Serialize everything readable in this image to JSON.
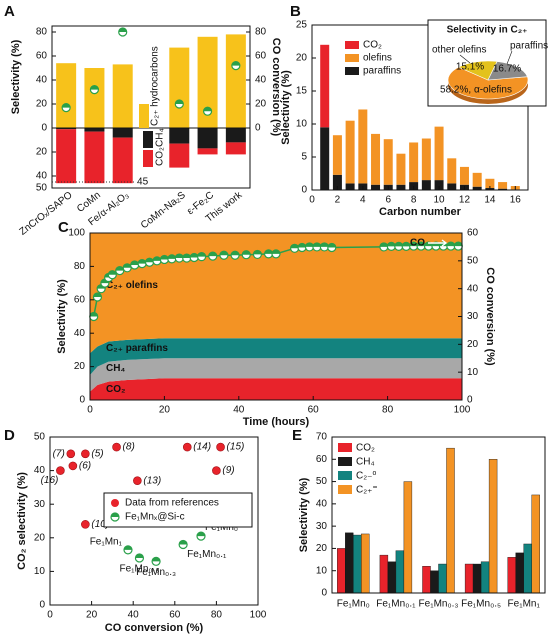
{
  "chart_data": [
    {
      "type": "bar",
      "panel_label": "A",
      "categories": [
        "ZnCrOₓ/SAPO",
        "CoMn",
        "Fe/α-Al₂O₃",
        "CoMn-Na₂S",
        "ε-Fe₂C",
        "This work"
      ],
      "series": [
        {
          "name": "C₂₊ hydrocarbons",
          "color": "#f7c21b",
          "values": [
            54,
            50,
            53,
            67,
            76,
            78
          ]
        },
        {
          "name": "CH₄",
          "color": "#1a1a1a",
          "axis": "lower",
          "values": [
            1,
            3,
            8,
            13,
            17,
            12
          ]
        },
        {
          "name": "CO₂",
          "color": "#e8232b",
          "axis": "lower",
          "values": [
            45,
            43,
            38,
            20,
            5,
            10
          ]
        },
        {
          "color": "#2aa04a",
          "axis": "y2",
          "values": [
            17,
            32,
            80,
            20,
            14,
            52
          ]
        }
      ],
      "ylim": [
        0,
        85
      ],
      "yticks": [
        0,
        20,
        40,
        60,
        80
      ],
      "ylim_lower": [
        0,
        50
      ],
      "yticks_lower": [
        20,
        40,
        50
      ],
      "y2lim": [
        0,
        85
      ],
      "y2ticks": [
        0,
        20,
        40,
        60,
        80
      ],
      "ylabel": "Selectivity (%)",
      "y2label": "CO conversion (%)",
      "annotation": "45"
    },
    {
      "type": "stacked_bar",
      "panel_label": "B",
      "x": [
        1,
        2,
        3,
        4,
        5,
        6,
        7,
        8,
        9,
        10,
        11,
        12,
        13,
        14,
        15,
        16
      ],
      "series": [
        {
          "name": "CO₂",
          "color": "#e8232b",
          "values": [
            12.5,
            null,
            null,
            null,
            null,
            null,
            null,
            null,
            null,
            null,
            null,
            null,
            null,
            null,
            null,
            null
          ]
        },
        {
          "name": "olefins",
          "color": "#f39324",
          "values": [
            null,
            6,
            9.5,
            11.2,
            7.7,
            6.9,
            4.7,
            6,
            6.3,
            8.1,
            3.8,
            2.7,
            2.1,
            1.4,
            1,
            0.5
          ]
        },
        {
          "name": "paraffins",
          "color": "#1a1a1a",
          "values": [
            9.5,
            2.3,
            1,
            1,
            0.8,
            0.8,
            0.8,
            1.2,
            1.5,
            1.5,
            1,
            0.8,
            0.5,
            0.3,
            0.2,
            0.1
          ]
        }
      ],
      "xlim": [
        0,
        17
      ],
      "xticks": [
        0,
        2,
        4,
        6,
        8,
        10,
        12,
        14,
        16
      ],
      "ylim": [
        0,
        25
      ],
      "yticks": [
        0,
        5,
        10,
        15,
        20,
        25
      ],
      "xlabel": "Carbon number",
      "ylabel": "Selectivity (%)",
      "inset": {
        "type": "pie",
        "title": "Selectivity in C₂₊",
        "categories": [
          null,
          "other olefins",
          "paraffins"
        ],
        "values": [
          58.2,
          15.1,
          16.7
        ],
        "value_labels": [
          "58.2%, α-olefins",
          "15.1%",
          "16.7%"
        ],
        "colors": [
          "#f39324",
          "#e3c21c",
          "#8a8a8a"
        ]
      }
    },
    {
      "type": "area",
      "panel_label": "C",
      "x": [
        0,
        2,
        5,
        10,
        20,
        40,
        60,
        80,
        100
      ],
      "series": [
        {
          "name": "CO₂",
          "color": "#e8232b",
          "values": [
            5,
            9,
            11,
            12,
            13,
            13,
            13,
            13,
            13
          ]
        },
        {
          "name": "CH₄",
          "color": "#a8a8a8",
          "values": [
            10,
            11,
            12,
            12,
            12,
            12,
            12,
            12,
            12
          ]
        },
        {
          "name": "C₂₊ paraffins",
          "color": "#13837f",
          "values": [
            13,
            12,
            12,
            12,
            12,
            12,
            12,
            12,
            12
          ]
        },
        {
          "name": "C₂₊ olefins",
          "color": "#f39324",
          "values": [
            72,
            68,
            65,
            64,
            63,
            63,
            63,
            63,
            63
          ]
        }
      ],
      "co_conversion": {
        "name": "CO",
        "color": "#2aa04a",
        "axis": "y2",
        "x": [
          1,
          2,
          3,
          4,
          5,
          6,
          8,
          10,
          12,
          14,
          16,
          18,
          20,
          22,
          24,
          26,
          28,
          30,
          33,
          36,
          39,
          42,
          45,
          48,
          50,
          55,
          57,
          59,
          61,
          63,
          65,
          79,
          81,
          83,
          85,
          87,
          89,
          91,
          93,
          95,
          97,
          99
        ],
        "values": [
          30,
          37,
          40,
          42,
          44,
          45,
          46.5,
          47.5,
          48.5,
          49,
          49.5,
          50,
          50.5,
          50.7,
          51,
          51,
          51.2,
          51.5,
          51.7,
          52,
          52,
          52.2,
          52.3,
          52.5,
          52.5,
          54.5,
          54.8,
          55,
          55,
          55,
          54.8,
          55,
          55.2,
          55.2,
          55.2,
          55.3,
          55.3,
          55.3,
          55.3,
          55.3,
          55.3,
          55.3
        ]
      },
      "xlim": [
        0,
        100
      ],
      "xticks": [
        0,
        20,
        40,
        60,
        80,
        100
      ],
      "ylim": [
        0,
        100
      ],
      "yticks": [
        0,
        20,
        40,
        60,
        80,
        100
      ],
      "y2lim": [
        0,
        60
      ],
      "y2ticks": [
        0,
        10,
        20,
        30,
        40,
        50,
        60
      ],
      "xlabel": "Time (hours)",
      "ylabel": "Selectivity (%)",
      "y2label": "CO conversion (%)"
    },
    {
      "type": "scatter",
      "panel_label": "D",
      "series": [
        {
          "name": "Data from references",
          "color": "#e8232b",
          "x": [
            10,
            17,
            11,
            5,
            32,
            42,
            17,
            66,
            82,
            80
          ],
          "values": [
            45,
            45,
            41.4,
            40,
            47,
            37,
            24,
            47,
            47,
            40
          ],
          "labels": [
            "(7)",
            "(5)",
            "(6)",
            "(16)",
            "(8)",
            "(13)",
            "(10)",
            "(14)",
            "(15)",
            "(9)"
          ]
        },
        {
          "name": "Fe₁Mnₓ@Si-c",
          "color": "#2aa04a",
          "x": [
            37.5,
            43,
            51,
            64,
            72.6
          ],
          "values": [
            16.4,
            14,
            13,
            18,
            20.5
          ],
          "labels": [
            "Fe₁Mn₁",
            "Fe₁Mn₀.₅",
            "Fe₁Mn₀.₃",
            "Fe₁Mn₀.₁",
            "Fe₁Mn₀"
          ]
        }
      ],
      "xlim": [
        0,
        100
      ],
      "xticks": [
        0,
        20,
        40,
        60,
        80,
        100
      ],
      "ylim": [
        0,
        50
      ],
      "yticks": [
        0,
        10,
        20,
        30,
        40,
        50
      ],
      "xlabel": "CO conversion (%)",
      "ylabel": "CO₂ selectivity (%)"
    },
    {
      "type": "grouped_bar",
      "panel_label": "E",
      "categories": [
        "Fe₁Mn₀",
        "Fe₁Mn₀.₁",
        "Fe₁Mn₀.₃",
        "Fe₁Mn₀.₅",
        "Fe₁Mn₁"
      ],
      "series": [
        {
          "name": "CO₂",
          "color": "#e8232b",
          "values": [
            20,
            17,
            12,
            13,
            16
          ]
        },
        {
          "name": "CH₄",
          "color": "#1a1a1a",
          "values": [
            27,
            14,
            10,
            13,
            18
          ]
        },
        {
          "name": "C₂₋⁰",
          "color": "#13837f",
          "values": [
            26,
            19,
            13,
            14,
            22
          ]
        },
        {
          "name": "C₂₊⁼",
          "color": "#f39324",
          "values": [
            26.5,
            50,
            65,
            60,
            44
          ]
        }
      ],
      "ylim": [
        0,
        70
      ],
      "yticks": [
        0,
        10,
        20,
        30,
        40,
        50,
        60,
        70
      ],
      "ylabel": "Selectivity (%)"
    }
  ]
}
